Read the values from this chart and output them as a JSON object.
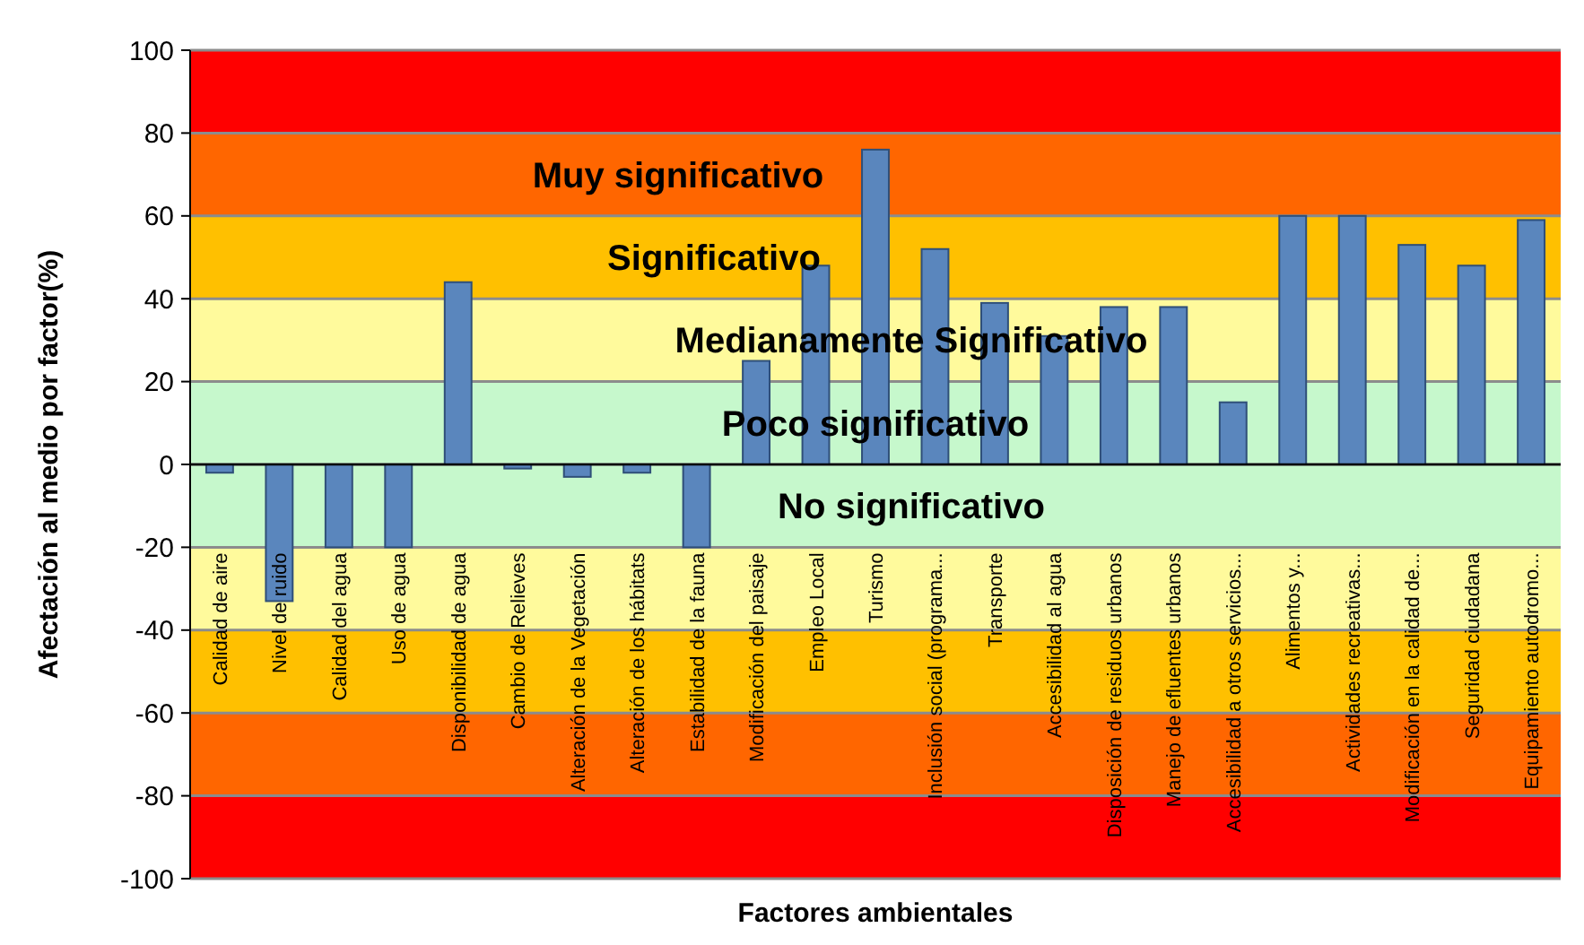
{
  "chart_data": {
    "type": "bar",
    "xlabel": "Factores ambientales",
    "ylabel": "Afectación al medio por factor(%)",
    "categories": [
      "Calidad de aire",
      "Nivel de ruido",
      "Calidad del agua",
      "Uso de agua",
      "Disponibilidad de agua",
      "Cambio de Relieves",
      "Alteración de la Vegetación",
      "Alteración de los hábitats",
      "Estabilidad de la fauna",
      "Modificación del paisaje",
      "Empleo Local",
      "Turismo",
      "Inclusión social (programa...",
      "Transporte",
      "Accesibilidad al agua",
      "Disposición de residuos urbanos",
      "Manejo de efluentes urbanos",
      "Accesibilidad a otros servicios...",
      "Alimentos y...",
      "Actividades recreativas...",
      "Modificación en la calidad de...",
      "Seguridad ciudadana",
      "Equipamiento autodromo..."
    ],
    "values": [
      -2,
      -33,
      -20,
      -20,
      44,
      -1,
      -3,
      -2,
      -20,
      25,
      48,
      76,
      52,
      39,
      31,
      38,
      38,
      15,
      60,
      60,
      53,
      48,
      59
    ],
    "color": "#5a86bd",
    "ylim": [
      -100,
      100
    ],
    "yticks": [
      -100,
      -80,
      -60,
      -40,
      -20,
      0,
      20,
      40,
      60,
      80,
      100
    ],
    "grid": "y",
    "bands": [
      {
        "axis": "y",
        "from": 80,
        "to": 100,
        "label": null,
        "color": "#ff0000"
      },
      {
        "axis": "y",
        "from": 60,
        "to": 80,
        "label": "Muy significativo",
        "color": "#ff6600"
      },
      {
        "axis": "y",
        "from": 40,
        "to": 60,
        "label": "Significativo",
        "color": "#ffc000"
      },
      {
        "axis": "y",
        "from": 20,
        "to": 40,
        "label": "Medianamente Significativo",
        "color": "#fffa9c"
      },
      {
        "axis": "y",
        "from": 0,
        "to": 20,
        "label": "Poco significativo",
        "color": "#c6f8cc"
      },
      {
        "axis": "y",
        "from": -20,
        "to": 0,
        "label": "No significativo",
        "color": "#c6f8cc"
      },
      {
        "axis": "y",
        "from": -40,
        "to": -20,
        "label": null,
        "color": "#fffa9c"
      },
      {
        "axis": "y",
        "from": -60,
        "to": -40,
        "label": null,
        "color": "#ffc000"
      },
      {
        "axis": "y",
        "from": -80,
        "to": -60,
        "label": null,
        "color": "#ff6600"
      },
      {
        "axis": "y",
        "from": -100,
        "to": -80,
        "label": null,
        "color": "#ff0000"
      }
    ]
  }
}
